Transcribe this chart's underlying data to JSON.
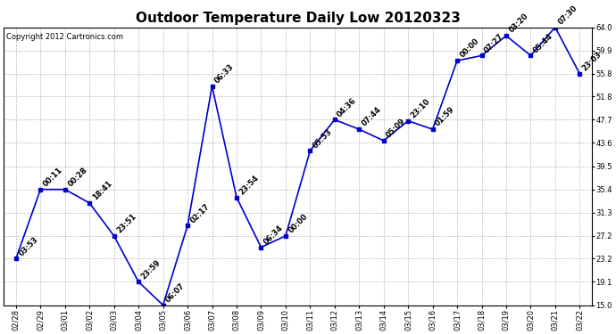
{
  "title": "Outdoor Temperature Daily Low 20120323",
  "copyright": "Copyright 2012 Cartronics.com",
  "line_color": "#0000cc",
  "marker_color": "#0000cc",
  "bg_color": "#ffffff",
  "grid_color": "#bbbbbb",
  "x_labels": [
    "02/28",
    "02/29",
    "03/01",
    "03/02",
    "03/03",
    "03/04",
    "03/05",
    "03/06",
    "03/07",
    "03/08",
    "03/09",
    "03/10",
    "03/11",
    "03/12",
    "03/13",
    "03/14",
    "03/15",
    "03/16",
    "03/17",
    "03/18",
    "03/19",
    "03/20",
    "03/21",
    "03/22"
  ],
  "y_values": [
    23.2,
    35.4,
    35.4,
    33.0,
    27.2,
    19.1,
    15.0,
    29.0,
    53.6,
    34.0,
    25.2,
    27.2,
    42.2,
    47.7,
    46.0,
    44.0,
    47.5,
    46.0,
    58.1,
    59.0,
    62.5,
    59.0,
    64.0,
    55.8
  ],
  "point_labels": [
    "03:53",
    "00:11",
    "00:28",
    "18:41",
    "23:51",
    "23:59",
    "06:07",
    "02:17",
    "06:33",
    "23:54",
    "06:34",
    "00:00",
    "05:53",
    "04:36",
    "07:44",
    "05:09",
    "23:10",
    "01:59",
    "00:00",
    "07:27",
    "03:20",
    "05:44",
    "07:30",
    "23:03"
  ],
  "ylim": [
    15.0,
    64.0
  ],
  "yticks": [
    15.0,
    19.1,
    23.2,
    27.2,
    31.3,
    35.4,
    39.5,
    43.6,
    47.7,
    51.8,
    55.8,
    59.9,
    64.0
  ],
  "title_fontsize": 11,
  "label_fontsize": 6,
  "copyright_fontsize": 6,
  "tick_fontsize": 6,
  "figwidth": 6.9,
  "figheight": 3.75,
  "dpi": 100
}
